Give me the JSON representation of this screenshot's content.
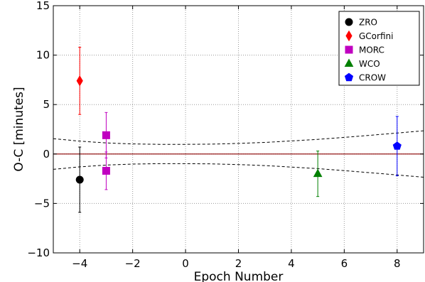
{
  "chart_data": {
    "type": "scatter",
    "xlabel": "Epoch Number",
    "ylabel": "O-C [minutes]",
    "xlim": [
      -5,
      9
    ],
    "ylim": [
      -10,
      15
    ],
    "xticks": [
      -4,
      -2,
      0,
      2,
      4,
      6,
      8
    ],
    "yticks": [
      -10,
      -5,
      0,
      5,
      10,
      15
    ],
    "xtick_labels": [
      "−4",
      "−2",
      "0",
      "2",
      "4",
      "6",
      "8"
    ],
    "ytick_labels": [
      "−10",
      "−5",
      "0",
      "5",
      "10",
      "15"
    ],
    "grid": true,
    "legend_position": "top-right",
    "series": [
      {
        "name": "ZRO",
        "marker": "circle",
        "color": "#000000",
        "points": [
          {
            "x": -4,
            "y": -2.6,
            "err": 3.3
          }
        ]
      },
      {
        "name": "GCorfini",
        "marker": "diamond",
        "color": "#ff0000",
        "points": [
          {
            "x": -4,
            "y": 7.4,
            "err": 3.4
          }
        ]
      },
      {
        "name": "MORC",
        "marker": "square",
        "color": "#c000c0",
        "points": [
          {
            "x": -3,
            "y": 1.9,
            "err": 2.3
          },
          {
            "x": -3,
            "y": -1.7,
            "err": 1.9
          }
        ]
      },
      {
        "name": "WCO",
        "marker": "triangle",
        "color": "#008000",
        "points": [
          {
            "x": 5,
            "y": -2.0,
            "err": 2.3
          }
        ]
      },
      {
        "name": "CROW",
        "marker": "pentagon",
        "color": "#0000ff",
        "points": [
          {
            "x": 8,
            "y": 0.8,
            "err": 3.0
          }
        ]
      }
    ],
    "reference_line": {
      "y": 0,
      "color": "#8b0000"
    },
    "uncertainty_envelope": {
      "style": "dashed",
      "color": "#000000",
      "upper": [
        [
          -5,
          1.55
        ],
        [
          -4,
          1.3
        ],
        [
          -3,
          1.12
        ],
        [
          -2,
          1.02
        ],
        [
          -1,
          0.98
        ],
        [
          0,
          0.98
        ],
        [
          1,
          1.0
        ],
        [
          2,
          1.07
        ],
        [
          3,
          1.17
        ],
        [
          4,
          1.32
        ],
        [
          5,
          1.48
        ],
        [
          6,
          1.68
        ],
        [
          7,
          1.9
        ],
        [
          8,
          2.12
        ],
        [
          9,
          2.35
        ]
      ],
      "lower": [
        [
          -5,
          -1.55
        ],
        [
          -4,
          -1.3
        ],
        [
          -3,
          -1.12
        ],
        [
          -2,
          -1.02
        ],
        [
          -1,
          -0.98
        ],
        [
          0,
          -0.98
        ],
        [
          1,
          -1.0
        ],
        [
          2,
          -1.07
        ],
        [
          3,
          -1.17
        ],
        [
          4,
          -1.32
        ],
        [
          5,
          -1.48
        ],
        [
          6,
          -1.68
        ],
        [
          7,
          -1.9
        ],
        [
          8,
          -2.12
        ],
        [
          9,
          -2.35
        ]
      ]
    }
  }
}
